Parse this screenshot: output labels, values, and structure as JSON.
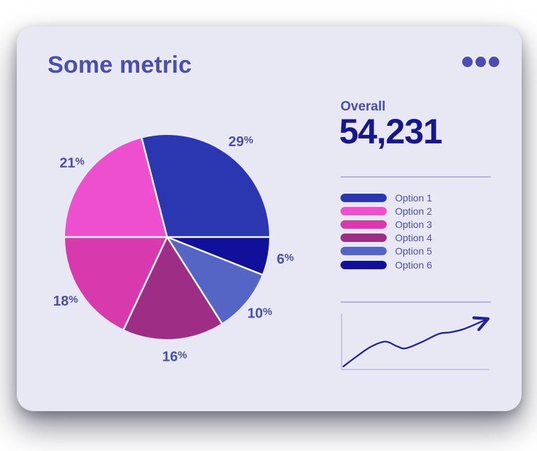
{
  "card": {
    "title": "Some metric",
    "menu": {
      "icon": "ellipsis-icon",
      "dot_count": 3
    },
    "overall": {
      "label": "Overall",
      "value": "54,231"
    }
  },
  "colors": {
    "card_background": "#e8e8f4",
    "accent_text": "#4a4eb0",
    "value_text": "#16168f",
    "divider": "#b7b3dd",
    "slice_gap": "#f7f6fc",
    "sparkline_line": "#22229e",
    "sparkline_axes": "#bdbade"
  },
  "chart_data": [
    {
      "type": "pie",
      "unit": "%",
      "slices": [
        {
          "label": "Option 1",
          "value": 29,
          "color": "#2a37b0"
        },
        {
          "label": "Option 2",
          "value": 21,
          "color": "#ee4fce"
        },
        {
          "label": "Option 3",
          "value": 18,
          "color": "#d83aae"
        },
        {
          "label": "Option 4",
          "value": 16,
          "color": "#9e2d86"
        },
        {
          "label": "Option 5",
          "value": 10,
          "color": "#5565c6"
        },
        {
          "label": "Option 6",
          "value": 6,
          "color": "#10109a"
        }
      ],
      "start_angle_deg": -14.4,
      "clockwise_render_order": [
        0,
        5,
        4,
        3,
        2,
        1
      ],
      "labels_outside": true,
      "legend_position": "right",
      "legend_entries": [
        "Option 1",
        "Option 2",
        "Option 3",
        "Option 4",
        "Option 5",
        "Option 6"
      ]
    },
    {
      "type": "line",
      "title": "trend sparkline",
      "x": [
        0.01,
        0.1,
        0.2,
        0.3,
        0.38,
        0.44,
        0.55,
        0.67,
        0.75,
        0.85,
        1.0
      ],
      "y": [
        0.04,
        0.23,
        0.42,
        0.52,
        0.43,
        0.39,
        0.51,
        0.67,
        0.7,
        0.77,
        0.95
      ],
      "xlim": [
        0,
        1
      ],
      "ylim": [
        0,
        1
      ],
      "grid": false,
      "ticks": false,
      "arrow_end": true,
      "axes": "bare L-frame, no tick labels"
    }
  ]
}
